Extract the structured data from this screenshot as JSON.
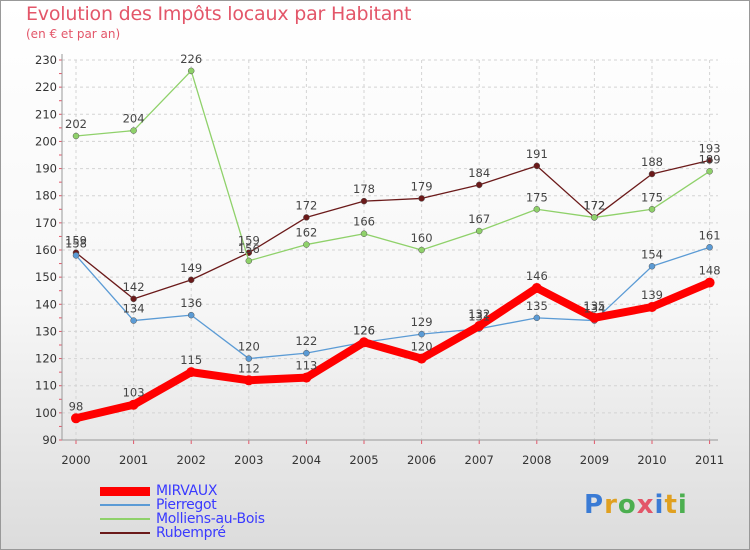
{
  "header": {
    "title": "Evolution des Impôts locaux par Habitant",
    "subtitle": "(en € et par an)"
  },
  "logo": {
    "text": "Proxiti",
    "colors": [
      "#3a7bd5",
      "#e0a020",
      "#4caf50",
      "#e35669",
      "#3a7bd5",
      "#e0a020",
      "#4caf50"
    ]
  },
  "chart_data": {
    "type": "line",
    "title": "Evolution des Impôts locaux par Habitant",
    "subtitle": "(en € et par an)",
    "xlabel": "",
    "ylabel": "",
    "x": [
      "2000",
      "2001",
      "2002",
      "2003",
      "2004",
      "2005",
      "2006",
      "2007",
      "2008",
      "2009",
      "2010",
      "2011"
    ],
    "ylim": [
      90,
      230
    ],
    "yticks": [
      90,
      100,
      110,
      120,
      130,
      140,
      150,
      160,
      170,
      180,
      190,
      200,
      210,
      220,
      230
    ],
    "grid": true,
    "legend_position": "bottom-left",
    "series": [
      {
        "name": "MIRVAUX",
        "color": "#ff0000",
        "values": [
          98,
          103,
          115,
          112,
          113,
          126,
          120,
          132,
          146,
          135,
          139,
          148
        ]
      },
      {
        "name": "Pierregot",
        "color": "#5b9bd5",
        "values": [
          158,
          134,
          136,
          120,
          122,
          126,
          129,
          131,
          135,
          134,
          154,
          161
        ]
      },
      {
        "name": "Molliens-au-Bois",
        "color": "#8fd16a",
        "values": [
          202,
          204,
          226,
          156,
          162,
          166,
          160,
          167,
          175,
          172,
          175,
          189
        ]
      },
      {
        "name": "Rubempré",
        "color": "#6b1a1a",
        "values": [
          159,
          142,
          149,
          159,
          172,
          178,
          179,
          184,
          191,
          172,
          188,
          193
        ]
      }
    ]
  }
}
